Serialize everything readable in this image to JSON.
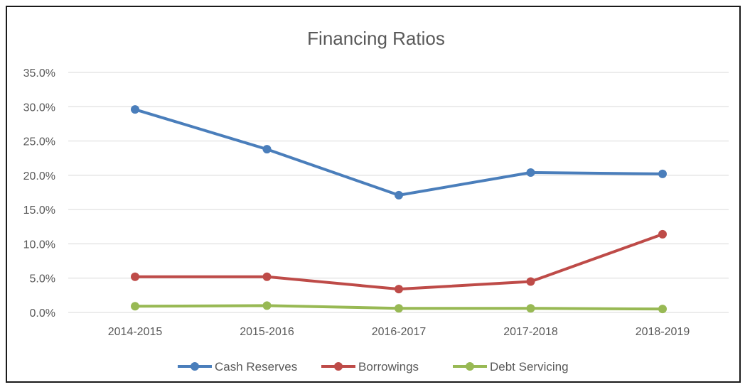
{
  "chart_data": {
    "type": "line",
    "title": "Financing Ratios",
    "xlabel": "",
    "ylabel": "",
    "categories": [
      "2014-2015",
      "2015-2016",
      "2016-2017",
      "2017-2018",
      "2018-2019"
    ],
    "ylim": [
      0,
      35
    ],
    "yticks": [
      0,
      5,
      10,
      15,
      20,
      25,
      30,
      35
    ],
    "ytick_labels": [
      "0.0%",
      "5.0%",
      "10.0%",
      "15.0%",
      "20.0%",
      "25.0%",
      "30.0%",
      "35.0%"
    ],
    "grid": true,
    "legend_position": "bottom",
    "series": [
      {
        "name": "Cash Reserves",
        "color": "#4a7ebb",
        "values": [
          29.6,
          23.8,
          17.1,
          20.4,
          20.2
        ]
      },
      {
        "name": "Borrowings",
        "color": "#be4b48",
        "values": [
          5.2,
          5.2,
          3.4,
          4.5,
          11.4
        ]
      },
      {
        "name": "Debt Servicing",
        "color": "#98b954",
        "values": [
          0.9,
          1.0,
          0.6,
          0.6,
          0.5
        ]
      }
    ]
  }
}
